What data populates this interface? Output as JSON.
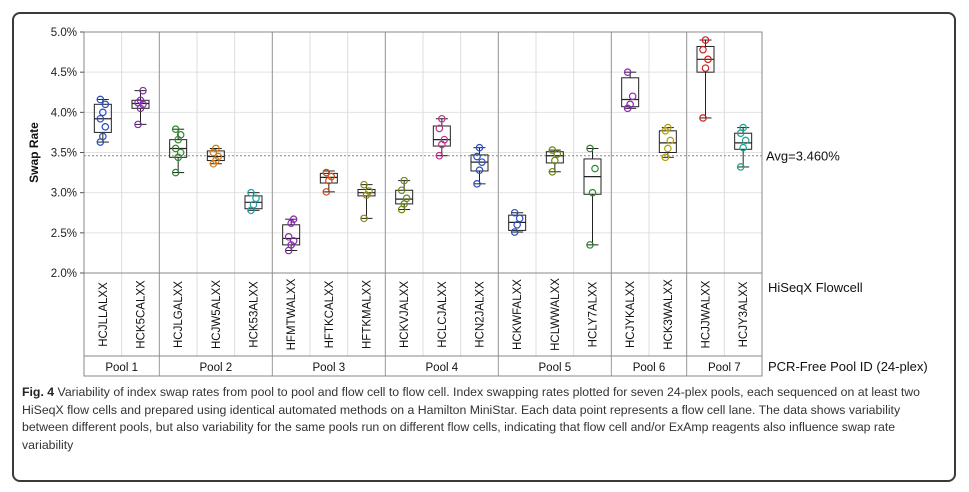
{
  "chart_data": {
    "type": "box",
    "ylabel": "Swap Rate",
    "ylim": [
      2.0,
      5.0
    ],
    "yticks": [
      "2.0%",
      "2.5%",
      "3.0%",
      "3.5%",
      "4.0%",
      "4.5%",
      "5.0%"
    ],
    "average_line": {
      "value": 3.46,
      "label": "Avg=3.460%"
    },
    "flowcell_axis_label": "HiSeqX Flowcell",
    "pool_axis_label": "PCR-Free Pool ID (24-plex)",
    "pools": [
      {
        "name": "Pool 1",
        "flowcells": [
          {
            "id": "HCJLLALXX",
            "color": "#2a4fc0",
            "min": 3.63,
            "q1": 3.75,
            "median": 3.92,
            "q3": 4.1,
            "max": 4.16,
            "points": [
              3.63,
              3.7,
              3.82,
              3.92,
              4.0,
              4.1,
              4.16
            ]
          },
          {
            "id": "HCK5CALXX",
            "color": "#8a2bb0",
            "min": 3.85,
            "q1": 4.05,
            "median": 4.11,
            "q3": 4.15,
            "max": 4.27,
            "points": [
              3.85,
              4.05,
              4.1,
              4.12,
              4.15,
              4.27
            ]
          }
        ]
      },
      {
        "name": "Pool 2",
        "flowcells": [
          {
            "id": "HCJLGALXX",
            "color": "#2e8b2e",
            "min": 3.25,
            "q1": 3.44,
            "median": 3.55,
            "q3": 3.66,
            "max": 3.79,
            "points": [
              3.25,
              3.44,
              3.5,
              3.55,
              3.66,
              3.72,
              3.79
            ]
          },
          {
            "id": "HCJW5ALXX",
            "color": "#d27a10",
            "min": 3.36,
            "q1": 3.4,
            "median": 3.45,
            "q3": 3.52,
            "max": 3.55,
            "points": [
              3.36,
              3.4,
              3.45,
              3.5,
              3.55
            ]
          },
          {
            "id": "HCK53ALXX",
            "color": "#1fa3a8",
            "min": 2.78,
            "q1": 2.8,
            "median": 2.88,
            "q3": 2.96,
            "max": 3.0,
            "points": [
              2.78,
              2.85,
              2.93,
              3.0
            ]
          }
        ]
      },
      {
        "name": "Pool 3",
        "flowcells": [
          {
            "id": "HFMTWALXX",
            "color": "#8a2bb0",
            "min": 2.28,
            "q1": 2.35,
            "median": 2.43,
            "q3": 2.6,
            "max": 2.67,
            "points": [
              2.28,
              2.35,
              2.4,
              2.45,
              2.62,
              2.67
            ]
          },
          {
            "id": "HFTKCALXX",
            "color": "#d24a10",
            "min": 3.01,
            "q1": 3.12,
            "median": 3.19,
            "q3": 3.24,
            "max": 3.27,
            "points": [
              3.01,
              3.15,
              3.2,
              3.25
            ]
          },
          {
            "id": "HFTKMALXX",
            "color": "#8a8a10",
            "min": 2.68,
            "q1": 2.96,
            "median": 3.0,
            "q3": 3.04,
            "max": 3.1,
            "points": [
              2.68,
              2.97,
              3.02,
              3.1
            ]
          }
        ]
      },
      {
        "name": "Pool 4",
        "flowcells": [
          {
            "id": "HCKVJALXX",
            "color": "#6b8a10",
            "min": 2.79,
            "q1": 2.86,
            "median": 2.92,
            "q3": 3.03,
            "max": 3.15,
            "points": [
              2.79,
              2.86,
              2.93,
              3.03,
              3.15
            ]
          },
          {
            "id": "HCLCJALXX",
            "color": "#c0308a",
            "min": 3.46,
            "q1": 3.58,
            "median": 3.66,
            "q3": 3.83,
            "max": 3.92,
            "points": [
              3.46,
              3.6,
              3.66,
              3.8,
              3.92
            ]
          },
          {
            "id": "HCN2JALXX",
            "color": "#2a4fc0",
            "min": 3.11,
            "q1": 3.27,
            "median": 3.38,
            "q3": 3.47,
            "max": 3.56,
            "points": [
              3.11,
              3.28,
              3.38,
              3.45,
              3.56
            ]
          }
        ]
      },
      {
        "name": "Pool 5",
        "flowcells": [
          {
            "id": "HCKWFALXX",
            "color": "#2a4fc0",
            "min": 2.51,
            "q1": 2.53,
            "median": 2.63,
            "q3": 2.72,
            "max": 2.75,
            "points": [
              2.51,
              2.6,
              2.68,
              2.75
            ]
          },
          {
            "id": "HCLWWALXX",
            "color": "#6b8a10",
            "min": 3.26,
            "q1": 3.37,
            "median": 3.46,
            "q3": 3.51,
            "max": 3.53,
            "points": [
              3.26,
              3.4,
              3.48,
              3.53
            ]
          },
          {
            "id": "HCLY7ALXX",
            "color": "#2e8b2e",
            "min": 2.35,
            "q1": 2.98,
            "median": 3.2,
            "q3": 3.42,
            "max": 3.55,
            "points": [
              2.35,
              3.0,
              3.3,
              3.55
            ]
          }
        ]
      },
      {
        "name": "Pool 6",
        "flowcells": [
          {
            "id": "HCJYKALXX",
            "color": "#8a2bb0",
            "min": 4.05,
            "q1": 4.07,
            "median": 4.16,
            "q3": 4.43,
            "max": 4.5,
            "points": [
              4.05,
              4.1,
              4.2,
              4.5
            ]
          },
          {
            "id": "HCK3WALXX",
            "color": "#b0a010",
            "min": 3.44,
            "q1": 3.5,
            "median": 3.62,
            "q3": 3.77,
            "max": 3.81,
            "points": [
              3.44,
              3.55,
              3.65,
              3.77,
              3.81
            ]
          }
        ]
      },
      {
        "name": "Pool 7",
        "flowcells": [
          {
            "id": "HCJJWALXX",
            "color": "#d02020",
            "min": 3.93,
            "q1": 4.5,
            "median": 4.66,
            "q3": 4.82,
            "max": 4.9,
            "points": [
              3.93,
              4.55,
              4.66,
              4.78,
              4.9
            ]
          },
          {
            "id": "HCJY3ALXX",
            "color": "#1fa38a",
            "min": 3.32,
            "q1": 3.54,
            "median": 3.62,
            "q3": 3.74,
            "max": 3.81,
            "points": [
              3.32,
              3.56,
              3.65,
              3.74,
              3.81
            ]
          }
        ]
      }
    ]
  },
  "caption": {
    "label": "Fig. 4",
    "text": "Variability of index swap rates from pool to pool and flow cell to flow cell. Index swapping rates plotted for seven 24-plex pools, each sequenced on at least two HiSeqX flow cells and prepared using identical automated methods on a Hamilton MiniStar. Each data point represents a flow cell lane. The data shows variability between different pools, but also variability for the same pools run on different flow cells, indicating that flow cell and/or ExAmp reagents also influence swap rate variability"
  }
}
